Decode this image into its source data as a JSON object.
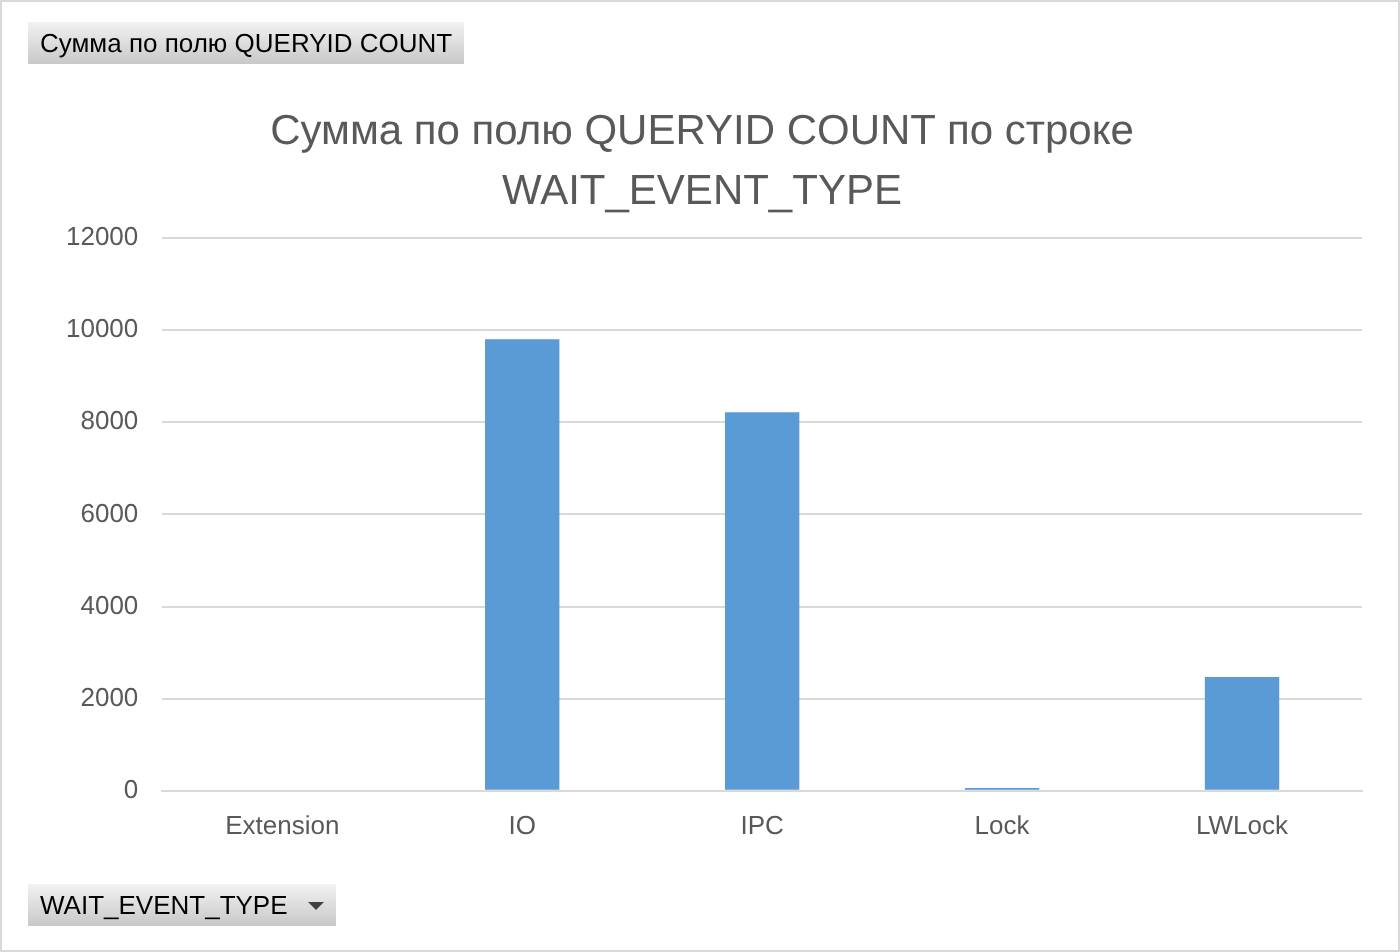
{
  "chart_data": {
    "type": "bar",
    "title": "Сумма по полю  QUERYID COUNT  по строке WAIT_EVENT_TYPE",
    "categories": [
      "Extension",
      "IO",
      "IPC",
      "Lock",
      "LWLock"
    ],
    "values": [
      0,
      9800,
      8220,
      60,
      2470
    ],
    "color": "#5b9bd5",
    "ylim": [
      0,
      12000
    ],
    "yticks": [
      0,
      2000,
      4000,
      6000,
      8000,
      10000,
      12000
    ],
    "grid": "y",
    "annotations": [
      "Сумма по полю  QUERYID COUNT",
      "WAIT_EVENT_TYPE"
    ]
  }
}
